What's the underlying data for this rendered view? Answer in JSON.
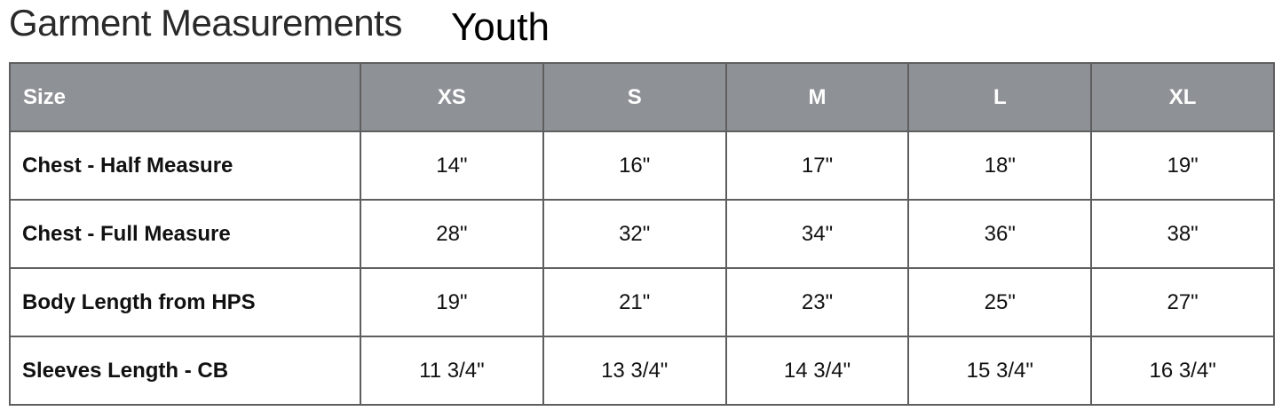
{
  "title": "Garment Measurements",
  "subtitle": "Youth",
  "table": {
    "headers": [
      "Size",
      "XS",
      "S",
      "M",
      "L",
      "XL"
    ],
    "rows": [
      [
        "Chest - Half Measure",
        "14\"",
        "16\"",
        "17\"",
        "18\"",
        "19\""
      ],
      [
        "Chest - Full Measure",
        "28\"",
        "32\"",
        "34\"",
        "36\"",
        "38\""
      ],
      [
        "Body Length from HPS",
        "19\"",
        "21\"",
        "23\"",
        "25\"",
        "27\""
      ],
      [
        "Sleeves Length - CB",
        "11 3/4\"",
        "13 3/4\"",
        "14 3/4\"",
        "15 3/4\"",
        "16 3/4\""
      ]
    ]
  },
  "colors": {
    "header_bg": "#8e9196",
    "border": "#5e5e5e"
  }
}
